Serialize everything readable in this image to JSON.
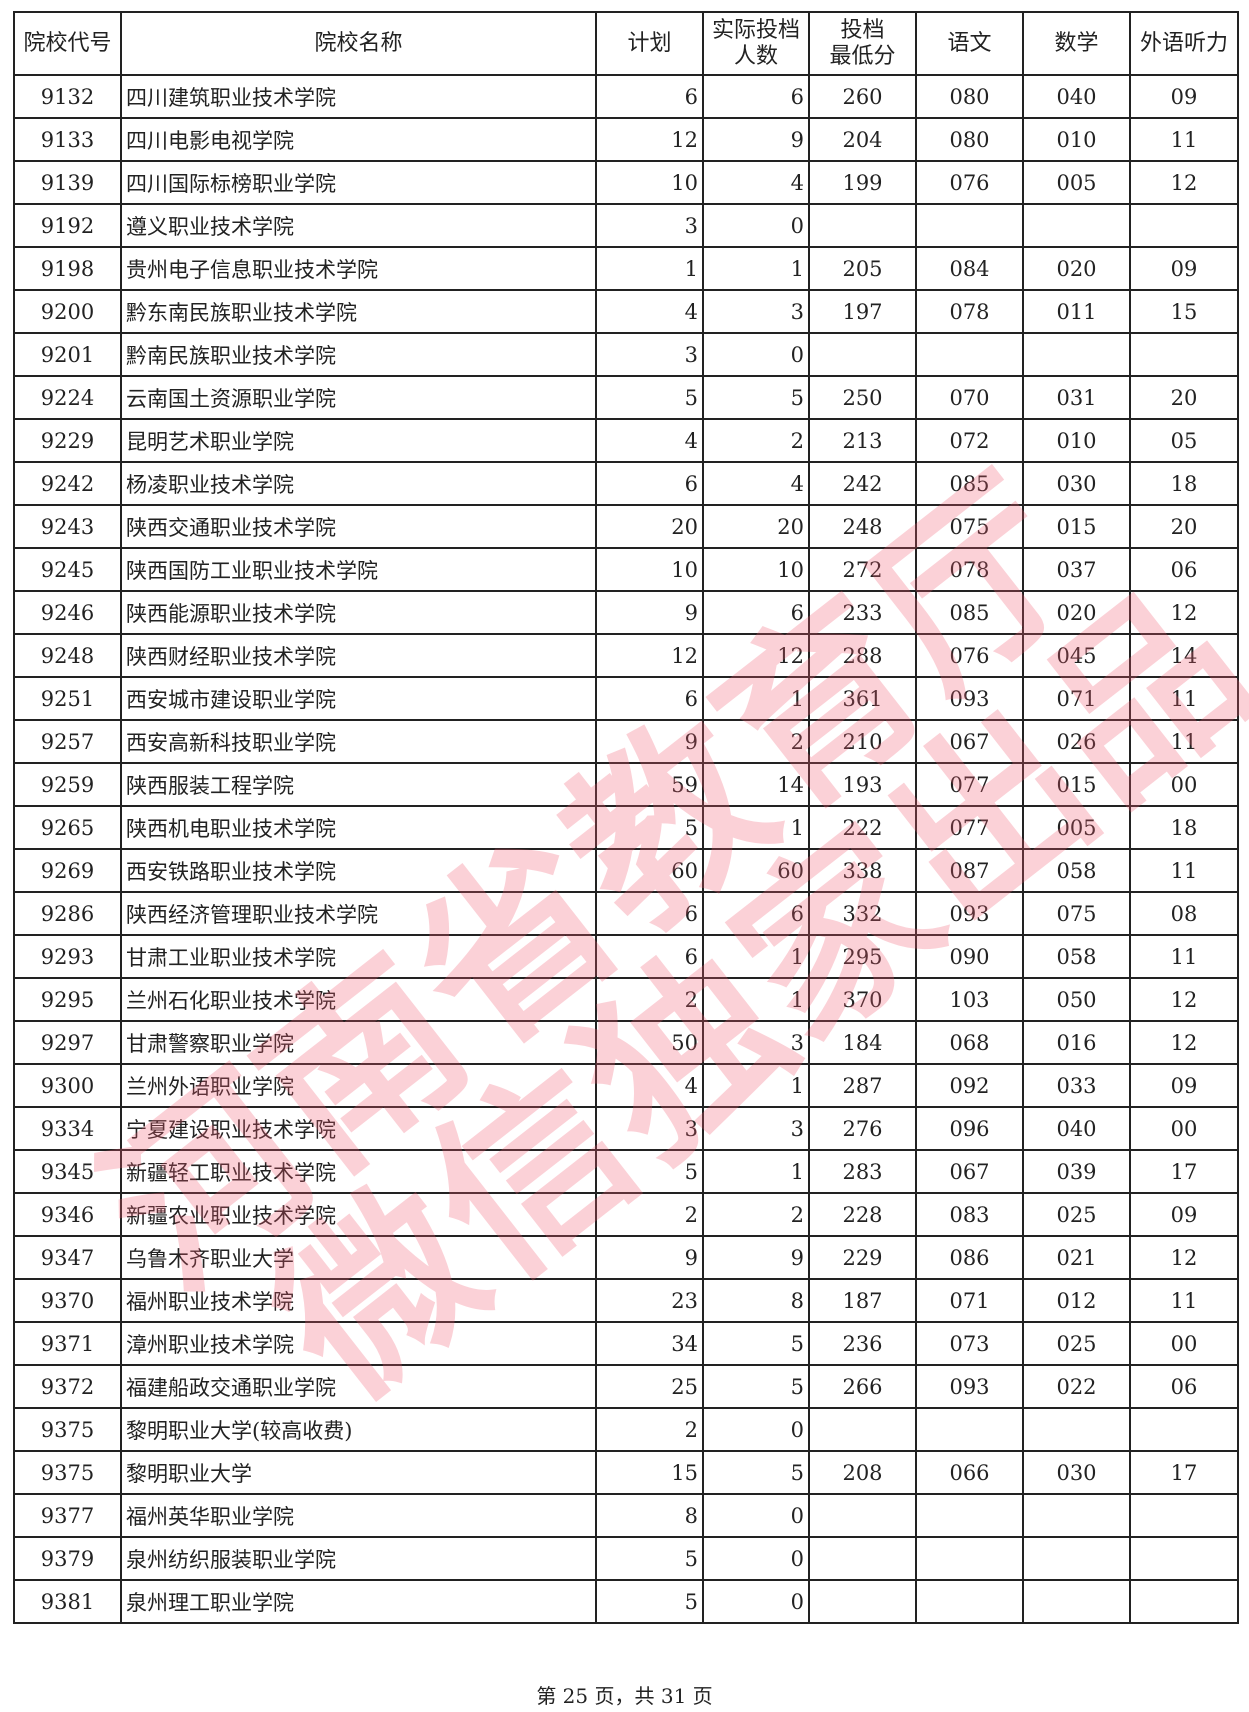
{
  "table": {
    "headers": [
      "院校代号",
      "院校名称",
      "计划",
      "实际投档\n人数",
      "投档\n最低分",
      "语文",
      "数学",
      "外语听力"
    ],
    "rows": [
      [
        "9132",
        "四川建筑职业技术学院",
        "6",
        "6",
        "260",
        "080",
        "040",
        "09"
      ],
      [
        "9133",
        "四川电影电视学院",
        "12",
        "9",
        "204",
        "080",
        "010",
        "11"
      ],
      [
        "9139",
        "四川国际标榜职业学院",
        "10",
        "4",
        "199",
        "076",
        "005",
        "12"
      ],
      [
        "9192",
        "遵义职业技术学院",
        "3",
        "0",
        "",
        "",
        "",
        ""
      ],
      [
        "9198",
        "贵州电子信息职业技术学院",
        "1",
        "1",
        "205",
        "084",
        "020",
        "09"
      ],
      [
        "9200",
        "黔东南民族职业技术学院",
        "4",
        "3",
        "197",
        "078",
        "011",
        "15"
      ],
      [
        "9201",
        "黔南民族职业技术学院",
        "3",
        "0",
        "",
        "",
        "",
        ""
      ],
      [
        "9224",
        "云南国土资源职业学院",
        "5",
        "5",
        "250",
        "070",
        "031",
        "20"
      ],
      [
        "9229",
        "昆明艺术职业学院",
        "4",
        "2",
        "213",
        "072",
        "010",
        "05"
      ],
      [
        "9242",
        "杨凌职业技术学院",
        "6",
        "4",
        "242",
        "085",
        "030",
        "18"
      ],
      [
        "9243",
        "陕西交通职业技术学院",
        "20",
        "20",
        "248",
        "075",
        "015",
        "20"
      ],
      [
        "9245",
        "陕西国防工业职业技术学院",
        "10",
        "10",
        "272",
        "078",
        "037",
        "06"
      ],
      [
        "9246",
        "陕西能源职业技术学院",
        "9",
        "6",
        "233",
        "085",
        "020",
        "12"
      ],
      [
        "9248",
        "陕西财经职业技术学院",
        "12",
        "12",
        "288",
        "076",
        "045",
        "14"
      ],
      [
        "9251",
        "西安城市建设职业学院",
        "6",
        "1",
        "361",
        "093",
        "071",
        "11"
      ],
      [
        "9257",
        "西安高新科技职业学院",
        "9",
        "2",
        "210",
        "067",
        "026",
        "11"
      ],
      [
        "9259",
        "陕西服装工程学院",
        "59",
        "14",
        "193",
        "077",
        "015",
        "00"
      ],
      [
        "9265",
        "陕西机电职业技术学院",
        "5",
        "1",
        "222",
        "077",
        "005",
        "18"
      ],
      [
        "9269",
        "西安铁路职业技术学院",
        "60",
        "60",
        "338",
        "087",
        "058",
        "11"
      ],
      [
        "9286",
        "陕西经济管理职业技术学院",
        "6",
        "6",
        "332",
        "093",
        "075",
        "08"
      ],
      [
        "9293",
        "甘肃工业职业技术学院",
        "6",
        "1",
        "295",
        "090",
        "058",
        "11"
      ],
      [
        "9295",
        "兰州石化职业技术学院",
        "2",
        "1",
        "370",
        "103",
        "050",
        "12"
      ],
      [
        "9297",
        "甘肃警察职业学院",
        "50",
        "3",
        "184",
        "068",
        "016",
        "12"
      ],
      [
        "9300",
        "兰州外语职业学院",
        "4",
        "1",
        "287",
        "092",
        "033",
        "09"
      ],
      [
        "9334",
        "宁夏建设职业技术学院",
        "3",
        "3",
        "276",
        "096",
        "040",
        "00"
      ],
      [
        "9345",
        "新疆轻工职业技术学院",
        "5",
        "1",
        "283",
        "067",
        "039",
        "17"
      ],
      [
        "9346",
        "新疆农业职业技术学院",
        "2",
        "2",
        "228",
        "083",
        "025",
        "09"
      ],
      [
        "9347",
        "乌鲁木齐职业大学",
        "9",
        "9",
        "229",
        "086",
        "021",
        "12"
      ],
      [
        "9370",
        "福州职业技术学院",
        "23",
        "8",
        "187",
        "071",
        "012",
        "11"
      ],
      [
        "9371",
        "漳州职业技术学院",
        "34",
        "5",
        "236",
        "073",
        "025",
        "00"
      ],
      [
        "9372",
        "福建船政交通职业学院",
        "25",
        "5",
        "266",
        "093",
        "022",
        "06"
      ],
      [
        "9375",
        "黎明职业大学(较高收费)",
        "2",
        "0",
        "",
        "",
        "",
        ""
      ],
      [
        "9375",
        "黎明职业大学",
        "15",
        "5",
        "208",
        "066",
        "030",
        "17"
      ],
      [
        "9377",
        "福州英华职业学院",
        "8",
        "0",
        "",
        "",
        "",
        ""
      ],
      [
        "9379",
        "泉州纺织服装职业学院",
        "5",
        "0",
        "",
        "",
        "",
        ""
      ],
      [
        "9381",
        "泉州理工职业学院",
        "5",
        "0",
        "",
        "",
        "",
        ""
      ]
    ]
  },
  "footer": "第 25 页，共 31 页",
  "watermark": {
    "line1": "河南省教育厅",
    "line2": "微信独家出品",
    "color": "#f05a6e"
  }
}
